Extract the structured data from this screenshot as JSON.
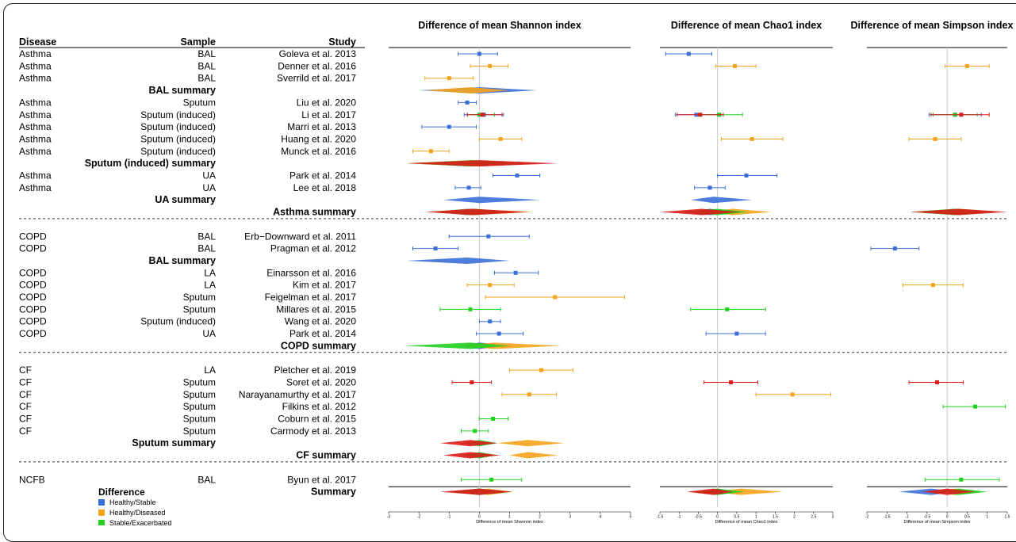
{
  "columns": {
    "disease": "Disease",
    "sample": "Sample",
    "study": "Study"
  },
  "panels": [
    {
      "key": "shannon",
      "title": "Difference of mean Shannon index",
      "axis_label": "Difference of mean Shannon index",
      "xlim": [
        -3,
        5
      ],
      "ticks": [
        -3,
        -2,
        -1,
        0,
        1,
        2,
        3,
        4,
        5
      ]
    },
    {
      "key": "chao1",
      "title": "Difference of mean Chao1 index",
      "axis_label": "Difference of mean Chao1 index",
      "xlim": [
        -1.5,
        3
      ],
      "ticks": [
        -1.5,
        -1,
        -0.5,
        0,
        0.5,
        1,
        1.5,
        2,
        2.5,
        3
      ]
    },
    {
      "key": "simpson",
      "title": "Difference of mean Simpson index",
      "axis_label": "Difference of mean Simpson index",
      "xlim": [
        -2,
        1.5
      ],
      "ticks": [
        -2,
        -1.5,
        -1,
        -0.5,
        0,
        0.5,
        1,
        1.5
      ]
    }
  ],
  "colors": {
    "Healthy/Stable": "#3b6fd8",
    "Healthy/Diseased": "#f5a31a",
    "Stable/Exacerbated": "#22d022",
    "Red": "#dd1a1a"
  },
  "legend": {
    "title": "Difference",
    "items": [
      "Healthy/Stable",
      "Healthy/Diseased",
      "Stable/Exacerbated"
    ]
  },
  "rows": [
    {
      "t": "s",
      "d": "Asthma",
      "s": "BAL",
      "st": "Goleva et al. 2013"
    },
    {
      "t": "s",
      "d": "Asthma",
      "s": "BAL",
      "st": "Denner et al. 2016"
    },
    {
      "t": "s",
      "d": "Asthma",
      "s": "BAL",
      "st": "Sverrild et al. 2017"
    },
    {
      "t": "sum",
      "label": "BAL summary",
      "col": "sample"
    },
    {
      "t": "s",
      "d": "Asthma",
      "s": "Sputum",
      "st": "Liu et al. 2020"
    },
    {
      "t": "s",
      "d": "Asthma",
      "s": "Sputum (induced)",
      "st": "Li et al. 2017"
    },
    {
      "t": "s",
      "d": "Asthma",
      "s": "Sputum (induced)",
      "st": "Marri et al. 2013"
    },
    {
      "t": "s",
      "d": "Asthma",
      "s": "Sputum (induced)",
      "st": "Huang et al. 2020"
    },
    {
      "t": "s",
      "d": "Asthma",
      "s": "Sputum (induced)",
      "st": "Munck et al. 2016"
    },
    {
      "t": "sum",
      "label": "Sputum (induced) summary",
      "col": "sample"
    },
    {
      "t": "s",
      "d": "Asthma",
      "s": "UA",
      "st": "Park et al. 2014"
    },
    {
      "t": "s",
      "d": "Asthma",
      "s": "UA",
      "st": "Lee et al. 2018"
    },
    {
      "t": "sum",
      "label": "UA summary",
      "col": "sample"
    },
    {
      "t": "sum",
      "label": "Asthma summary",
      "col": "study"
    },
    {
      "t": "div"
    },
    {
      "t": "s",
      "d": "COPD",
      "s": "BAL",
      "st": "Erb−Downward et al. 2011"
    },
    {
      "t": "s",
      "d": "COPD",
      "s": "BAL",
      "st": "Pragman et al. 2012"
    },
    {
      "t": "sum",
      "label": "BAL summary",
      "col": "sample"
    },
    {
      "t": "s",
      "d": "COPD",
      "s": "LA",
      "st": "Einarsson et al. 2016"
    },
    {
      "t": "s",
      "d": "COPD",
      "s": "LA",
      "st": "Kim et al. 2017"
    },
    {
      "t": "s",
      "d": "COPD",
      "s": "Sputum",
      "st": "Feigelman et al. 2017"
    },
    {
      "t": "s",
      "d": "COPD",
      "s": "Sputum",
      "st": "Millares et al. 2015"
    },
    {
      "t": "s",
      "d": "COPD",
      "s": "Sputum (induced)",
      "st": "Wang et al. 2020"
    },
    {
      "t": "s",
      "d": "COPD",
      "s": "UA",
      "st": "Park et al. 2014"
    },
    {
      "t": "sum",
      "label": "COPD summary",
      "col": "study"
    },
    {
      "t": "div"
    },
    {
      "t": "s",
      "d": "CF",
      "s": "LA",
      "st": "Pletcher et al. 2019"
    },
    {
      "t": "s",
      "d": "CF",
      "s": "Sputum",
      "st": "Soret et al. 2020"
    },
    {
      "t": "s",
      "d": "CF",
      "s": "Sputum",
      "st": "Narayanamurthy et al. 2017"
    },
    {
      "t": "s",
      "d": "CF",
      "s": "Sputum",
      "st": "Filkins et al. 2012"
    },
    {
      "t": "s",
      "d": "CF",
      "s": "Sputum",
      "st": "Coburn et al. 2015"
    },
    {
      "t": "s",
      "d": "CF",
      "s": "Sputum",
      "st": "Carmody et al. 2013"
    },
    {
      "t": "sum",
      "label": "Sputum summary",
      "col": "sample"
    },
    {
      "t": "sum",
      "label": "CF summary",
      "col": "study"
    },
    {
      "t": "div"
    },
    {
      "t": "s",
      "d": "NCFB",
      "s": "BAL",
      "st": "Byun et al. 2017"
    },
    {
      "t": "sum",
      "label": "Summary",
      "col": "study"
    }
  ],
  "chart_data": {
    "type": "forest",
    "series_names": [
      "Healthy/Stable",
      "Healthy/Diseased",
      "Stable/Exacerbated"
    ],
    "shannon": {
      "points": [
        {
          "row": 0,
          "c": "Healthy/Stable",
          "est": 0.0,
          "lo": -0.7,
          "hi": 0.6
        },
        {
          "row": 1,
          "c": "Healthy/Diseased",
          "est": 0.35,
          "lo": -0.3,
          "hi": 0.95
        },
        {
          "row": 2,
          "c": "Healthy/Diseased",
          "est": -1.0,
          "lo": -1.8,
          "hi": -0.2
        },
        {
          "row": 4,
          "c": "Healthy/Stable",
          "est": -0.4,
          "lo": -0.7,
          "hi": -0.1
        },
        {
          "row": 5,
          "c": "Healthy/Stable",
          "est": 0.15,
          "lo": -0.5,
          "hi": 0.8
        },
        {
          "row": 5,
          "c": "Stable/Exacerbated",
          "est": 0.0,
          "lo": -0.4,
          "hi": 0.5
        },
        {
          "row": 5,
          "c": "Red",
          "est": 0.1,
          "lo": -0.4,
          "hi": 0.75
        },
        {
          "row": 6,
          "c": "Healthy/Stable",
          "est": -1.0,
          "lo": -1.9,
          "hi": -0.1
        },
        {
          "row": 7,
          "c": "Healthy/Diseased",
          "est": 0.7,
          "lo": 0.0,
          "hi": 1.4
        },
        {
          "row": 8,
          "c": "Healthy/Diseased",
          "est": -1.6,
          "lo": -2.2,
          "hi": -1.0
        },
        {
          "row": 10,
          "c": "Healthy/Stable",
          "est": 1.25,
          "lo": 0.45,
          "hi": 2.0
        },
        {
          "row": 11,
          "c": "Healthy/Stable",
          "est": -0.35,
          "lo": -0.8,
          "hi": 0.05
        },
        {
          "row": 15,
          "c": "Healthy/Stable",
          "est": 0.3,
          "lo": -1.0,
          "hi": 1.65
        },
        {
          "row": 16,
          "c": "Healthy/Stable",
          "est": -1.45,
          "lo": -2.2,
          "hi": -0.7
        },
        {
          "row": 18,
          "c": "Healthy/Stable",
          "est": 1.2,
          "lo": 0.5,
          "hi": 1.95
        },
        {
          "row": 19,
          "c": "Healthy/Diseased",
          "est": 0.35,
          "lo": -0.4,
          "hi": 1.15
        },
        {
          "row": 20,
          "c": "Healthy/Diseased",
          "est": 2.5,
          "lo": 0.2,
          "hi": 4.8
        },
        {
          "row": 21,
          "c": "Stable/Exacerbated",
          "est": -0.3,
          "lo": -1.3,
          "hi": 0.7
        },
        {
          "row": 22,
          "c": "Healthy/Stable",
          "est": 0.35,
          "lo": 0.0,
          "hi": 0.7
        },
        {
          "row": 23,
          "c": "Healthy/Stable",
          "est": 0.65,
          "lo": -0.1,
          "hi": 1.45
        },
        {
          "row": 26,
          "c": "Healthy/Diseased",
          "est": 2.05,
          "lo": 1.0,
          "hi": 3.1
        },
        {
          "row": 27,
          "c": "Red",
          "est": -0.25,
          "lo": -0.9,
          "hi": 0.4
        },
        {
          "row": 28,
          "c": "Healthy/Diseased",
          "est": 1.65,
          "lo": 0.75,
          "hi": 2.55
        },
        {
          "row": 30,
          "c": "Stable/Exacerbated",
          "est": 0.45,
          "lo": 0.0,
          "hi": 0.95
        },
        {
          "row": 31,
          "c": "Stable/Exacerbated",
          "est": -0.15,
          "lo": -0.6,
          "hi": 0.3
        },
        {
          "row": 35,
          "c": "Stable/Exacerbated",
          "est": 0.4,
          "lo": -0.6,
          "hi": 1.4
        }
      ],
      "diamonds": [
        {
          "row": 3,
          "c": "Healthy/Stable",
          "est": 0.0,
          "lo": -2.0,
          "hi": 1.9
        },
        {
          "row": 3,
          "c": "Healthy/Diseased",
          "est": -0.3,
          "lo": -1.8,
          "hi": 1.0
        },
        {
          "row": 9,
          "c": "Healthy/Stable",
          "est": -0.3,
          "lo": -2.3,
          "hi": 1.7
        },
        {
          "row": 9,
          "c": "Healthy/Diseased",
          "est": -0.3,
          "lo": -2.4,
          "hi": 1.8
        },
        {
          "row": 9,
          "c": "Stable/Exacerbated",
          "est": -0.2,
          "lo": -2.4,
          "hi": 2.0
        },
        {
          "row": 9,
          "c": "Red",
          "est": 0.0,
          "lo": -2.4,
          "hi": 2.6
        },
        {
          "row": 12,
          "c": "Healthy/Stable",
          "est": 0.0,
          "lo": -1.2,
          "hi": 2.0
        },
        {
          "row": 13,
          "c": "Healthy/Stable",
          "est": -0.4,
          "lo": -1.6,
          "hi": 1.6
        },
        {
          "row": 13,
          "c": "Healthy/Diseased",
          "est": -0.3,
          "lo": -1.6,
          "hi": 1.8
        },
        {
          "row": 13,
          "c": "Stable/Exacerbated",
          "est": -0.2,
          "lo": -1.7,
          "hi": 1.2
        },
        {
          "row": 13,
          "c": "Red",
          "est": -0.2,
          "lo": -1.8,
          "hi": 1.6
        },
        {
          "row": 17,
          "c": "Healthy/Stable",
          "est": -0.4,
          "lo": -2.4,
          "hi": 1.0
        },
        {
          "row": 24,
          "c": "Healthy/Stable",
          "est": 0.0,
          "lo": -0.7,
          "hi": 1.1
        },
        {
          "row": 24,
          "c": "Healthy/Diseased",
          "est": 0.5,
          "lo": -0.8,
          "hi": 2.7
        },
        {
          "row": 24,
          "c": "Stable/Exacerbated",
          "est": -0.3,
          "lo": -2.5,
          "hi": 1.0
        },
        {
          "row": 32,
          "c": "Healthy/Diseased",
          "est": 1.6,
          "lo": 0.6,
          "hi": 2.8
        },
        {
          "row": 32,
          "c": "Stable/Exacerbated",
          "est": 0.0,
          "lo": -0.6,
          "hi": 0.6
        },
        {
          "row": 32,
          "c": "Red",
          "est": -0.3,
          "lo": -1.3,
          "hi": 0.6
        },
        {
          "row": 33,
          "c": "Healthy/Diseased",
          "est": 1.6,
          "lo": 1.0,
          "hi": 2.6
        },
        {
          "row": 33,
          "c": "Stable/Exacerbated",
          "est": 0.0,
          "lo": -0.6,
          "hi": 0.6
        },
        {
          "row": 33,
          "c": "Red",
          "est": -0.3,
          "lo": -1.2,
          "hi": 0.7
        },
        {
          "row": 36,
          "c": "Healthy/Stable",
          "est": 0.0,
          "lo": -0.9,
          "hi": 0.9
        },
        {
          "row": 36,
          "c": "Healthy/Diseased",
          "est": 0.3,
          "lo": -0.8,
          "hi": 1.1
        },
        {
          "row": 36,
          "c": "Stable/Exacerbated",
          "est": 0.0,
          "lo": -1.1,
          "hi": 1.1
        },
        {
          "row": 36,
          "c": "Red",
          "est": 0.0,
          "lo": -1.3,
          "hi": 1.1
        }
      ]
    },
    "chao1": {
      "points": [
        {
          "row": 0,
          "c": "Healthy/Stable",
          "est": -0.75,
          "lo": -1.35,
          "hi": -0.15
        },
        {
          "row": 1,
          "c": "Healthy/Diseased",
          "est": 0.45,
          "lo": -0.05,
          "hi": 1.0
        },
        {
          "row": 5,
          "c": "Healthy/Stable",
          "est": -0.55,
          "lo": -1.1,
          "hi": 0.0
        },
        {
          "row": 5,
          "c": "Stable/Exacerbated",
          "est": 0.05,
          "lo": -0.5,
          "hi": 0.65
        },
        {
          "row": 5,
          "c": "Red",
          "est": -0.45,
          "lo": -1.05,
          "hi": 0.15
        },
        {
          "row": 7,
          "c": "Healthy/Diseased",
          "est": 0.9,
          "lo": 0.1,
          "hi": 1.7
        },
        {
          "row": 10,
          "c": "Healthy/Stable",
          "est": 0.75,
          "lo": 0.0,
          "hi": 1.55
        },
        {
          "row": 11,
          "c": "Healthy/Stable",
          "est": -0.2,
          "lo": -0.6,
          "hi": 0.2
        },
        {
          "row": 21,
          "c": "Stable/Exacerbated",
          "est": 0.25,
          "lo": -0.7,
          "hi": 1.25
        },
        {
          "row": 23,
          "c": "Healthy/Stable",
          "est": 0.5,
          "lo": -0.3,
          "hi": 1.25
        },
        {
          "row": 27,
          "c": "Red",
          "est": 0.35,
          "lo": -0.35,
          "hi": 1.05
        },
        {
          "row": 28,
          "c": "Healthy/Diseased",
          "est": 1.95,
          "lo": 1.0,
          "hi": 2.95
        }
      ],
      "diamonds": [
        {
          "row": 12,
          "c": "Healthy/Stable",
          "est": -0.1,
          "lo": -0.7,
          "hi": 0.9
        },
        {
          "row": 13,
          "c": "Healthy/Stable",
          "est": -0.2,
          "lo": -0.8,
          "hi": 0.5
        },
        {
          "row": 13,
          "c": "Healthy/Diseased",
          "est": 0.4,
          "lo": -0.5,
          "hi": 1.4
        },
        {
          "row": 13,
          "c": "Stable/Exacerbated",
          "est": 0.0,
          "lo": -1.0,
          "hi": 0.8
        },
        {
          "row": 13,
          "c": "Red",
          "est": -0.4,
          "lo": -1.5,
          "hi": 0.6
        },
        {
          "row": 36,
          "c": "Healthy/Stable",
          "est": 0.0,
          "lo": -0.5,
          "hi": 0.5
        },
        {
          "row": 36,
          "c": "Healthy/Diseased",
          "est": 0.6,
          "lo": -0.2,
          "hi": 1.7
        },
        {
          "row": 36,
          "c": "Stable/Exacerbated",
          "est": 0.0,
          "lo": -0.7,
          "hi": 0.7
        },
        {
          "row": 36,
          "c": "Red",
          "est": -0.1,
          "lo": -0.8,
          "hi": 0.4
        }
      ]
    },
    "simpson": {
      "points": [
        {
          "row": 1,
          "c": "Healthy/Diseased",
          "est": 0.5,
          "lo": -0.05,
          "hi": 1.05
        },
        {
          "row": 5,
          "c": "Healthy/Stable",
          "est": 0.2,
          "lo": -0.45,
          "hi": 0.85
        },
        {
          "row": 5,
          "c": "Stable/Exacerbated",
          "est": 0.2,
          "lo": -0.35,
          "hi": 0.75
        },
        {
          "row": 5,
          "c": "Red",
          "est": 0.35,
          "lo": -0.4,
          "hi": 1.05
        },
        {
          "row": 7,
          "c": "Healthy/Diseased",
          "est": -0.3,
          "lo": -0.95,
          "hi": 0.35
        },
        {
          "row": 16,
          "c": "Healthy/Stable",
          "est": -1.3,
          "lo": -1.9,
          "hi": -0.7
        },
        {
          "row": 19,
          "c": "Healthy/Diseased",
          "est": -0.35,
          "lo": -1.1,
          "hi": 0.4
        },
        {
          "row": 27,
          "c": "Red",
          "est": -0.25,
          "lo": -0.95,
          "hi": 0.4
        },
        {
          "row": 29,
          "c": "Stable/Exacerbated",
          "est": 0.7,
          "lo": -0.1,
          "hi": 1.45
        },
        {
          "row": 35,
          "c": "Stable/Exacerbated",
          "est": 0.35,
          "lo": -0.55,
          "hi": 1.3
        }
      ],
      "diamonds": [
        {
          "row": 13,
          "c": "Healthy/Stable",
          "est": 0.2,
          "lo": -0.9,
          "hi": 1.3
        },
        {
          "row": 13,
          "c": "Healthy/Diseased",
          "est": 0.2,
          "lo": -0.9,
          "hi": 1.3
        },
        {
          "row": 13,
          "c": "Stable/Exacerbated",
          "est": 0.2,
          "lo": -0.9,
          "hi": 1.2
        },
        {
          "row": 13,
          "c": "Red",
          "est": 0.3,
          "lo": -0.9,
          "hi": 1.5
        },
        {
          "row": 36,
          "c": "Healthy/Stable",
          "est": -0.4,
          "lo": -1.2,
          "hi": 0.3
        },
        {
          "row": 36,
          "c": "Healthy/Diseased",
          "est": 0.2,
          "lo": -0.5,
          "hi": 0.9
        },
        {
          "row": 36,
          "c": "Stable/Exacerbated",
          "est": 0.3,
          "lo": -0.4,
          "hi": 1.0
        },
        {
          "row": 36,
          "c": "Red",
          "est": 0.0,
          "lo": -0.6,
          "hi": 0.7
        }
      ]
    }
  }
}
